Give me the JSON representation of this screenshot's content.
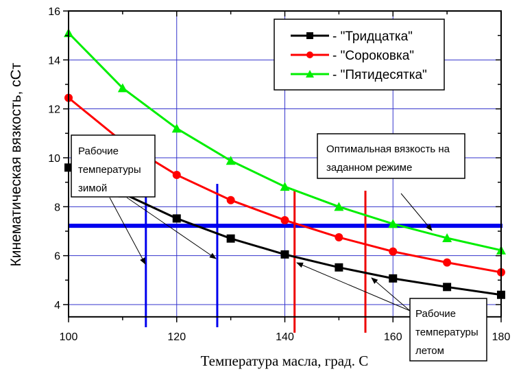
{
  "chart_data": {
    "type": "line",
    "xlabel": "Температура масла, град. С",
    "ylabel": "Кинематическая вязкость, сСт",
    "xlim": [
      100,
      180
    ],
    "ylim": [
      3.5,
      16
    ],
    "xticks": [
      "100",
      "120",
      "140",
      "160",
      "180"
    ],
    "yticks": [
      "4",
      "6",
      "8",
      "10",
      "12",
      "14",
      "16"
    ],
    "grid": true,
    "legend_position": "top-right",
    "x": [
      100,
      110,
      120,
      130,
      140,
      150,
      160,
      170,
      180
    ],
    "series": [
      {
        "name": "- \"Тридцатка\"",
        "color": "#000000",
        "marker": "square",
        "values": [
          9.6,
          8.55,
          7.52,
          6.7,
          6.05,
          5.52,
          5.07,
          4.72,
          4.4
        ]
      },
      {
        "name": "- \"Сороковка\"",
        "color": "#ff0000",
        "marker": "circle",
        "values": [
          12.45,
          10.65,
          9.3,
          8.27,
          7.45,
          6.75,
          6.17,
          5.72,
          5.32
        ]
      },
      {
        "name": "- \"Пятидесятка\"",
        "color": "#00ee00",
        "marker": "triangle",
        "values": [
          15.1,
          12.85,
          11.2,
          9.88,
          8.82,
          8.0,
          7.3,
          6.72,
          6.22
        ]
      }
    ],
    "reference_lines": {
      "optimal_viscosity": {
        "y": 7.22,
        "color": "#0000ee"
      },
      "winter_temperatures": {
        "x": [
          114.3,
          127.5
        ],
        "color": "#0000ee"
      },
      "summer_temperatures": {
        "x": [
          141.8,
          154.9
        ],
        "color": "#ee0000"
      }
    },
    "annotations": {
      "winter": [
        "Рабочие",
        "температуры",
        "зимой"
      ],
      "optimal": [
        "Оптимальная вязкость на",
        "заданном режиме"
      ],
      "summer": [
        "Рабочие",
        "температуры",
        "летом"
      ]
    }
  }
}
